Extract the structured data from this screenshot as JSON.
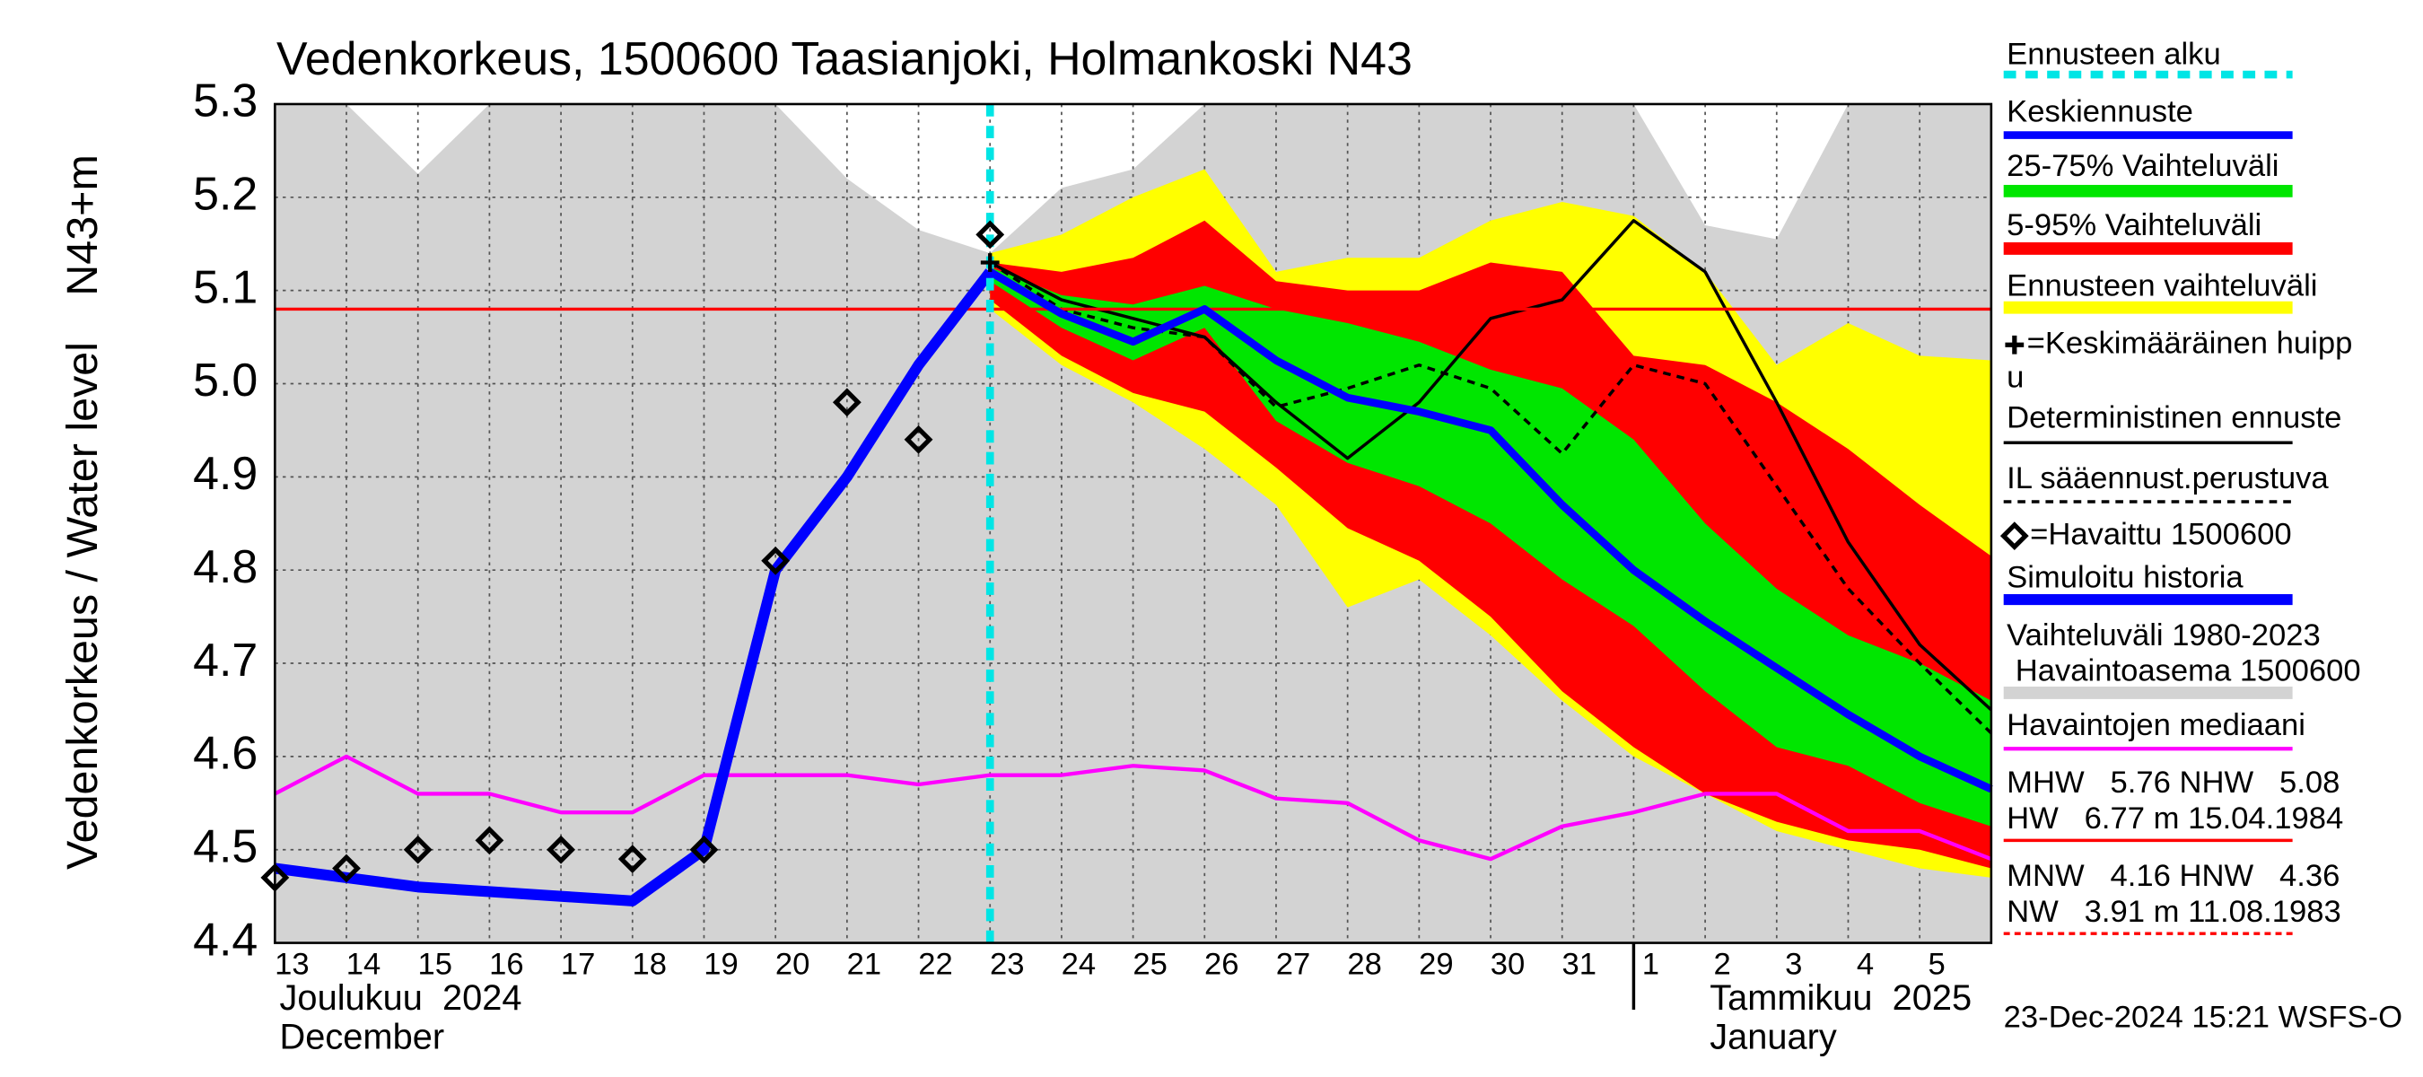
{
  "chart_data": {
    "type": "line",
    "title": "Vedenkorkeus, 1500600 Taasianjoki, Holmankoski N43",
    "ylabel": "Vedenkorkeus / Water level",
    "ylabel2": "N43+m",
    "ylim": [
      4.4,
      5.3
    ],
    "yticks": [
      4.4,
      4.5,
      4.6,
      4.7,
      4.8,
      4.9,
      {
        "value": 5.0,
        "label": "5.0"
      },
      5.1,
      5.2,
      5.3
    ],
    "grid": true,
    "categories": [
      "13",
      "14",
      "15",
      "16",
      "17",
      "18",
      "19",
      "20",
      "21",
      "22",
      "23",
      "24",
      "25",
      "26",
      "27",
      "28",
      "29",
      "30",
      "31",
      "1",
      "2",
      "3",
      "4",
      "5",
      null
    ],
    "months": [
      {
        "index": 0,
        "label": "Joulukuu  2024",
        "label_en": "December"
      },
      {
        "index": 19,
        "label": "Tammikuu  2025",
        "label_en": "January"
      }
    ],
    "forecast_start": {
      "index": 10,
      "name": "Ennusteen alku",
      "color": "#00e5e5"
    },
    "reference_line": {
      "value": 5.08,
      "color": "#ff0000"
    },
    "mean_peak": {
      "name": [
        "=Keskimääräinen huipp",
        "u"
      ],
      "index": 10,
      "value": 5.13
    },
    "series": [
      {
        "name": "Keskiennuste",
        "color": "#0000ff",
        "style": "line",
        "width": 5,
        "values": [
          null,
          null,
          null,
          null,
          null,
          null,
          null,
          null,
          null,
          null,
          5.12,
          5.075,
          5.045,
          5.08,
          5.025,
          4.985,
          4.97,
          4.95,
          4.87,
          4.8,
          4.745,
          4.695,
          4.645,
          4.6,
          4.565
        ]
      },
      {
        "name": "25-75% Vaihteluväli",
        "color": "#00e600",
        "style": "band",
        "lower": [
          null,
          null,
          null,
          null,
          null,
          null,
          null,
          null,
          null,
          null,
          5.11,
          5.06,
          5.025,
          5.06,
          4.96,
          4.915,
          4.89,
          4.85,
          4.79,
          4.74,
          4.67,
          4.61,
          4.59,
          4.55,
          4.525
        ],
        "upper": [
          null,
          null,
          null,
          null,
          null,
          null,
          null,
          null,
          null,
          null,
          5.125,
          5.095,
          5.085,
          5.105,
          5.08,
          5.065,
          5.045,
          5.015,
          4.995,
          4.94,
          4.85,
          4.78,
          4.73,
          4.7,
          4.66
        ]
      },
      {
        "name": "5-95% Vaihteluväli",
        "color": "#ff0000",
        "style": "band",
        "lower": [
          null,
          null,
          null,
          null,
          null,
          null,
          null,
          null,
          null,
          null,
          5.09,
          5.03,
          4.99,
          4.97,
          4.91,
          4.845,
          4.81,
          4.75,
          4.67,
          4.61,
          4.56,
          4.53,
          4.51,
          4.5,
          4.48
        ],
        "upper": [
          null,
          null,
          null,
          null,
          null,
          null,
          null,
          null,
          null,
          null,
          5.13,
          5.12,
          5.135,
          5.175,
          5.11,
          5.1,
          5.1,
          5.13,
          5.12,
          5.03,
          5.02,
          4.98,
          4.93,
          4.87,
          4.815
        ]
      },
      {
        "name": "Ennusteen vaihteluväli",
        "color": "#ffff00",
        "style": "band",
        "lower": [
          null,
          null,
          null,
          null,
          null,
          null,
          null,
          null,
          null,
          null,
          5.08,
          5.02,
          4.98,
          4.93,
          4.87,
          4.76,
          4.79,
          4.73,
          4.66,
          4.6,
          4.56,
          4.52,
          4.5,
          4.48,
          4.47
        ],
        "upper": [
          null,
          null,
          null,
          null,
          null,
          null,
          null,
          null,
          null,
          null,
          5.14,
          5.16,
          5.2,
          5.23,
          5.12,
          5.135,
          5.135,
          5.175,
          5.195,
          5.18,
          5.12,
          5.02,
          5.065,
          5.03,
          5.025
        ]
      },
      {
        "name": "Deterministinen ennuste",
        "color": "#000000",
        "style": "line",
        "width": 2,
        "values": [
          null,
          null,
          null,
          null,
          null,
          null,
          null,
          null,
          null,
          null,
          5.13,
          5.09,
          5.07,
          5.05,
          4.98,
          4.92,
          4.98,
          5.07,
          5.09,
          5.175,
          5.12,
          4.98,
          4.83,
          4.72,
          4.65
        ]
      },
      {
        "name": "IL sääennust.perustuva",
        "color": "#000000",
        "style": "dashed",
        "width": 2,
        "values": [
          null,
          null,
          null,
          null,
          null,
          null,
          null,
          null,
          null,
          null,
          5.13,
          5.08,
          5.06,
          5.05,
          4.975,
          4.995,
          5.02,
          4.995,
          4.925,
          5.02,
          5.0,
          4.89,
          4.78,
          4.7,
          4.625
        ]
      },
      {
        "name": "=Havaittu 1500600",
        "color": "#000000",
        "style": "markers",
        "values": [
          4.47,
          4.48,
          4.5,
          4.51,
          4.5,
          4.49,
          4.5,
          4.81,
          4.98,
          4.94,
          5.16,
          null,
          null,
          null,
          null,
          null,
          null,
          null,
          null,
          null,
          null,
          null,
          null,
          null,
          null
        ]
      },
      {
        "name": "Simuloitu historia",
        "color": "#0000ff",
        "style": "line",
        "width": 7,
        "values": [
          4.48,
          4.47,
          4.46,
          4.455,
          4.45,
          4.445,
          4.5,
          4.8,
          4.9,
          5.02,
          5.12,
          null,
          null,
          null,
          null,
          null,
          null,
          null,
          null,
          null,
          null,
          null,
          null,
          null,
          null
        ]
      },
      {
        "name": [
          "Vaihteluväli 1980-2023",
          " Havaintoasema 1500600"
        ],
        "color": "#d3d3d3",
        "style": "area",
        "values": [
          5.3,
          5.3,
          5.225,
          5.3,
          5.3,
          5.3,
          5.3,
          5.3,
          5.22,
          5.165,
          5.14,
          5.21,
          5.23,
          5.3,
          5.3,
          5.3,
          5.3,
          5.3,
          5.3,
          5.3,
          5.17,
          5.155,
          5.3,
          5.3,
          5.3
        ]
      },
      {
        "name": "Havaintojen mediaani",
        "color": "#ff00ff",
        "style": "line",
        "width": 2.5,
        "values": [
          4.56,
          4.6,
          4.56,
          4.56,
          4.54,
          4.54,
          4.58,
          4.58,
          4.58,
          4.57,
          4.58,
          4.58,
          4.59,
          4.585,
          4.555,
          4.55,
          4.51,
          4.49,
          4.525,
          4.54,
          4.56,
          4.56,
          4.52,
          4.52,
          4.49
        ]
      }
    ],
    "stats": [
      {
        "lines": [
          "MHW   5.76 NHW   5.08",
          "HW   6.77 m 15.04.1984"
        ],
        "color": "#ff0000",
        "dashed": false
      },
      {
        "lines": [
          "MNW   4.16 HNW   4.36",
          "NW   3.91 m 11.08.1983"
        ],
        "color": "#ff0000",
        "dashed": true
      }
    ],
    "footer": "23-Dec-2024 15:21 WSFS-O"
  }
}
